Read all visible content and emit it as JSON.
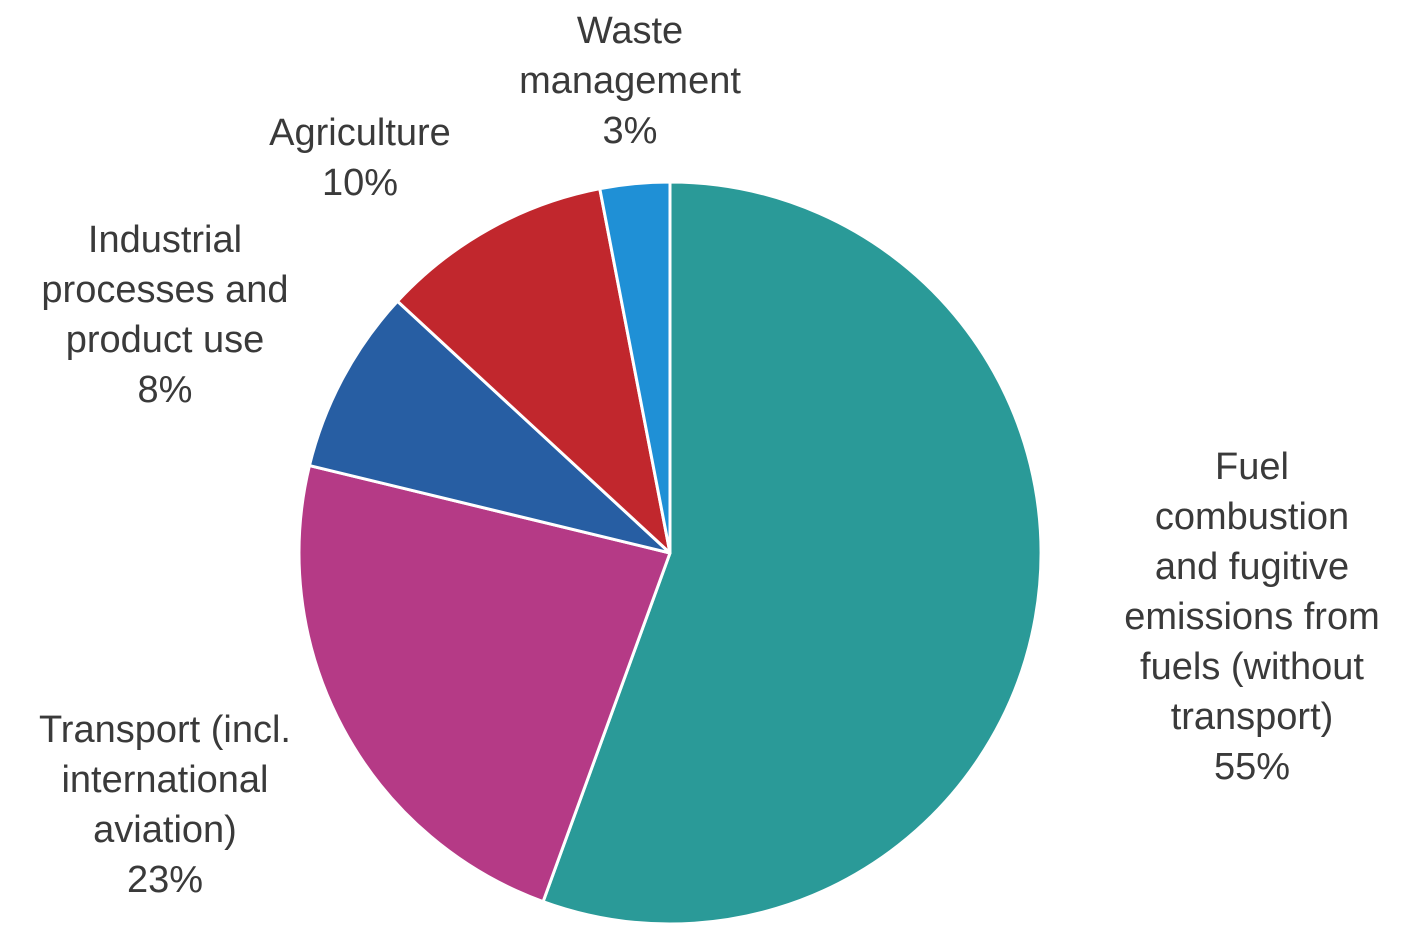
{
  "chart_data": {
    "type": "pie",
    "start": "12 o'clock",
    "direction": "clockwise",
    "slices": [
      {
        "label_lines": [
          "Fuel",
          "combustion",
          "and fugitive",
          "emissions from",
          "fuels (without",
          "transport)"
        ],
        "value": 55,
        "value_label": "55%",
        "color": "#2a9a98"
      },
      {
        "label_lines": [
          "Transport  (incl.",
          "international",
          "aviation)"
        ],
        "value": 23,
        "value_label": "23%",
        "color": "#b53a86"
      },
      {
        "label_lines": [
          "Industrial",
          "processes and",
          "product use"
        ],
        "value": 8,
        "value_label": "8%",
        "color": "#275ea3"
      },
      {
        "label_lines": [
          "Agriculture"
        ],
        "value": 10,
        "value_label": "10%",
        "color": "#c1272d"
      },
      {
        "label_lines": [
          "Waste",
          "management"
        ],
        "value": 3,
        "value_label": "3%",
        "color": "#1f90d6"
      }
    ]
  }
}
